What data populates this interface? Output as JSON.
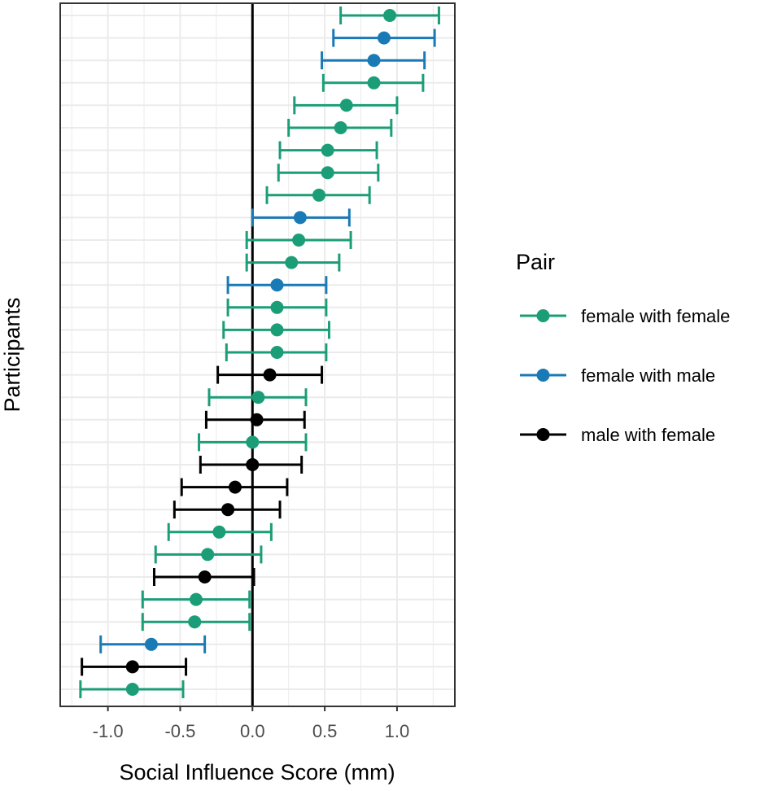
{
  "chart_data": {
    "type": "scatter",
    "subtype": "forest-plot",
    "title": "",
    "xlabel": "Social Influence Score (mm)",
    "ylabel": "Participants",
    "xlim": [
      -1.33,
      1.4
    ],
    "xticks": [
      -1.0,
      -0.5,
      0.0,
      0.5,
      1.0
    ],
    "xtick_labels": [
      "-1.0",
      "-0.5",
      "0.0",
      "0.5",
      "1.0"
    ],
    "reference_line_x": 0,
    "grid": true,
    "legend": {
      "title": "Pair",
      "position": "right",
      "entries": [
        {
          "label": "female with female",
          "color": "#1b9e77"
        },
        {
          "label": "female with male",
          "color": "#1a7ab5"
        },
        {
          "label": "male with female",
          "color": "#000000"
        }
      ]
    },
    "colors": {
      "female with female": "#1b9e77",
      "female with male": "#1a7ab5",
      "male with female": "#000000"
    },
    "points": [
      {
        "group": "female with female",
        "estimate": 0.95,
        "lower": 0.61,
        "upper": 1.29
      },
      {
        "group": "female with male",
        "estimate": 0.91,
        "lower": 0.56,
        "upper": 1.26
      },
      {
        "group": "female with male",
        "estimate": 0.84,
        "lower": 0.48,
        "upper": 1.19
      },
      {
        "group": "female with female",
        "estimate": 0.84,
        "lower": 0.49,
        "upper": 1.18
      },
      {
        "group": "female with female",
        "estimate": 0.65,
        "lower": 0.29,
        "upper": 1.0
      },
      {
        "group": "female with female",
        "estimate": 0.61,
        "lower": 0.25,
        "upper": 0.96
      },
      {
        "group": "female with female",
        "estimate": 0.52,
        "lower": 0.19,
        "upper": 0.86
      },
      {
        "group": "female with female",
        "estimate": 0.52,
        "lower": 0.18,
        "upper": 0.87
      },
      {
        "group": "female with female",
        "estimate": 0.46,
        "lower": 0.1,
        "upper": 0.81
      },
      {
        "group": "female with male",
        "estimate": 0.33,
        "lower": 0.0,
        "upper": 0.67
      },
      {
        "group": "female with female",
        "estimate": 0.32,
        "lower": -0.04,
        "upper": 0.68
      },
      {
        "group": "female with female",
        "estimate": 0.27,
        "lower": -0.04,
        "upper": 0.6
      },
      {
        "group": "female with male",
        "estimate": 0.17,
        "lower": -0.17,
        "upper": 0.51
      },
      {
        "group": "female with female",
        "estimate": 0.17,
        "lower": -0.17,
        "upper": 0.51
      },
      {
        "group": "female with female",
        "estimate": 0.17,
        "lower": -0.2,
        "upper": 0.53
      },
      {
        "group": "female with female",
        "estimate": 0.17,
        "lower": -0.18,
        "upper": 0.51
      },
      {
        "group": "male with female",
        "estimate": 0.12,
        "lower": -0.24,
        "upper": 0.48
      },
      {
        "group": "female with female",
        "estimate": 0.04,
        "lower": -0.3,
        "upper": 0.37
      },
      {
        "group": "male with female",
        "estimate": 0.03,
        "lower": -0.32,
        "upper": 0.36
      },
      {
        "group": "female with female",
        "estimate": 0.0,
        "lower": -0.37,
        "upper": 0.37
      },
      {
        "group": "male with female",
        "estimate": 0.0,
        "lower": -0.36,
        "upper": 0.34
      },
      {
        "group": "male with female",
        "estimate": -0.12,
        "lower": -0.49,
        "upper": 0.24
      },
      {
        "group": "male with female",
        "estimate": -0.17,
        "lower": -0.54,
        "upper": 0.19
      },
      {
        "group": "female with female",
        "estimate": -0.23,
        "lower": -0.58,
        "upper": 0.13
      },
      {
        "group": "female with female",
        "estimate": -0.31,
        "lower": -0.67,
        "upper": 0.06
      },
      {
        "group": "male with female",
        "estimate": -0.33,
        "lower": -0.68,
        "upper": 0.01
      },
      {
        "group": "female with female",
        "estimate": -0.39,
        "lower": -0.76,
        "upper": -0.02
      },
      {
        "group": "female with female",
        "estimate": -0.4,
        "lower": -0.76,
        "upper": -0.02
      },
      {
        "group": "female with male",
        "estimate": -0.7,
        "lower": -1.05,
        "upper": -0.33
      },
      {
        "group": "male with female",
        "estimate": -0.83,
        "lower": -1.18,
        "upper": -0.46
      },
      {
        "group": "female with female",
        "estimate": -0.83,
        "lower": -1.19,
        "upper": -0.48
      }
    ]
  }
}
